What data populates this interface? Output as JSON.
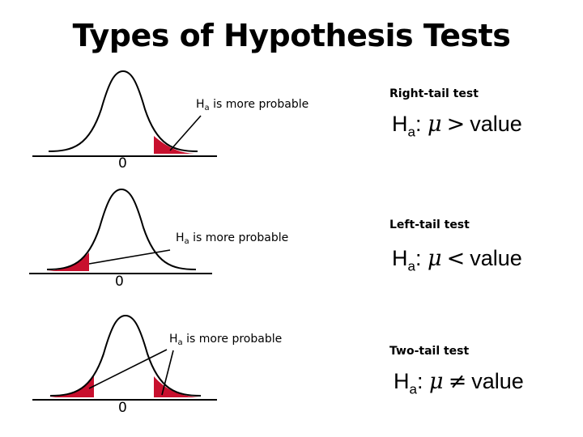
{
  "title": "Types of Hypothesis Tests",
  "colors": {
    "tail_fill": "#c8102e",
    "curve": "#000000"
  },
  "panels": [
    {
      "label": "Right-tail test",
      "callout_main": "H",
      "callout_sub": "a",
      "callout_rest": " is more probable",
      "zero": "0",
      "formula": {
        "lhs": "H",
        "sub": "a",
        "colon": ":",
        "mu": "μ",
        "op": ">",
        "rhs": "value"
      }
    },
    {
      "label": "Left-tail test",
      "callout_main": "H",
      "callout_sub": "a",
      "callout_rest": " is more probable",
      "zero": "0",
      "formula": {
        "lhs": "H",
        "sub": "a",
        "colon": ":",
        "mu": "μ",
        "op": "<",
        "rhs": "value"
      }
    },
    {
      "label": "Two-tail test",
      "callout_main": "H",
      "callout_sub": "a",
      "callout_rest": " is more probable",
      "zero": "0",
      "formula": {
        "lhs": "H",
        "sub": "a",
        "colon": ":",
        "mu": "μ",
        "op": "≠",
        "rhs": "value"
      }
    }
  ]
}
